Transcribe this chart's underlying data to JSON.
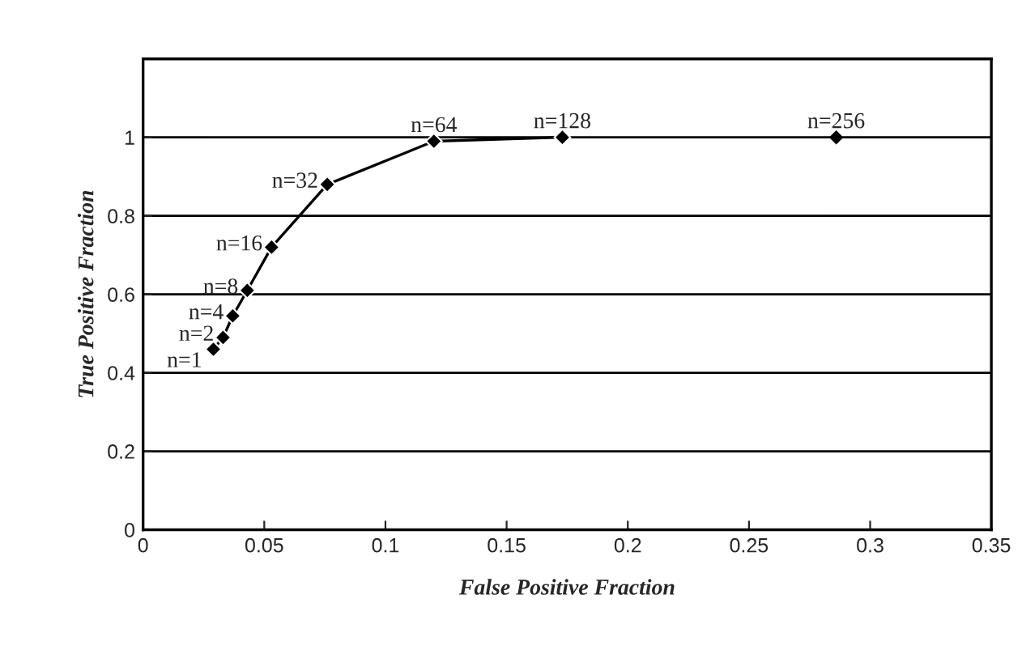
{
  "chart_data": {
    "type": "line",
    "xlabel": "False Positive Fraction",
    "ylabel": "True Positive Fraction",
    "series": [
      {
        "color": "#000000",
        "x": [
          0.029,
          0.033,
          0.037,
          0.043,
          0.053,
          0.076,
          0.12,
          0.173
        ],
        "values": [
          0.46,
          0.49,
          0.545,
          0.61,
          0.72,
          0.88,
          0.99,
          1.0
        ]
      },
      {
        "type": "scatter",
        "color": "#000000",
        "x": [
          0.286
        ],
        "values": [
          1.0
        ]
      }
    ],
    "marker": "diamond",
    "annotations": [
      {
        "text": "n=1",
        "x": 0.029,
        "y": 0.46
      },
      {
        "text": "n=2",
        "x": 0.033,
        "y": 0.49
      },
      {
        "text": "n=4",
        "x": 0.037,
        "y": 0.545
      },
      {
        "text": "n=8",
        "x": 0.043,
        "y": 0.61
      },
      {
        "text": "n=16",
        "x": 0.053,
        "y": 0.72
      },
      {
        "text": "n=32",
        "x": 0.076,
        "y": 0.88
      },
      {
        "text": "n=64",
        "x": 0.12,
        "y": 0.99
      },
      {
        "text": "n=128",
        "x": 0.173,
        "y": 1.0
      },
      {
        "text": "n=256",
        "x": 0.286,
        "y": 1.0
      }
    ],
    "xlim": [
      0,
      0.35
    ],
    "xticks": [
      0,
      0.05,
      0.1,
      0.15,
      0.2,
      0.25,
      0.3,
      0.35
    ],
    "ylim": [
      0,
      1.2
    ],
    "yticks": [
      0,
      0.2,
      0.4,
      0.6,
      0.8,
      1,
      {
        "value": 1.2,
        "label": null
      }
    ],
    "grid": "y",
    "legend": false
  }
}
